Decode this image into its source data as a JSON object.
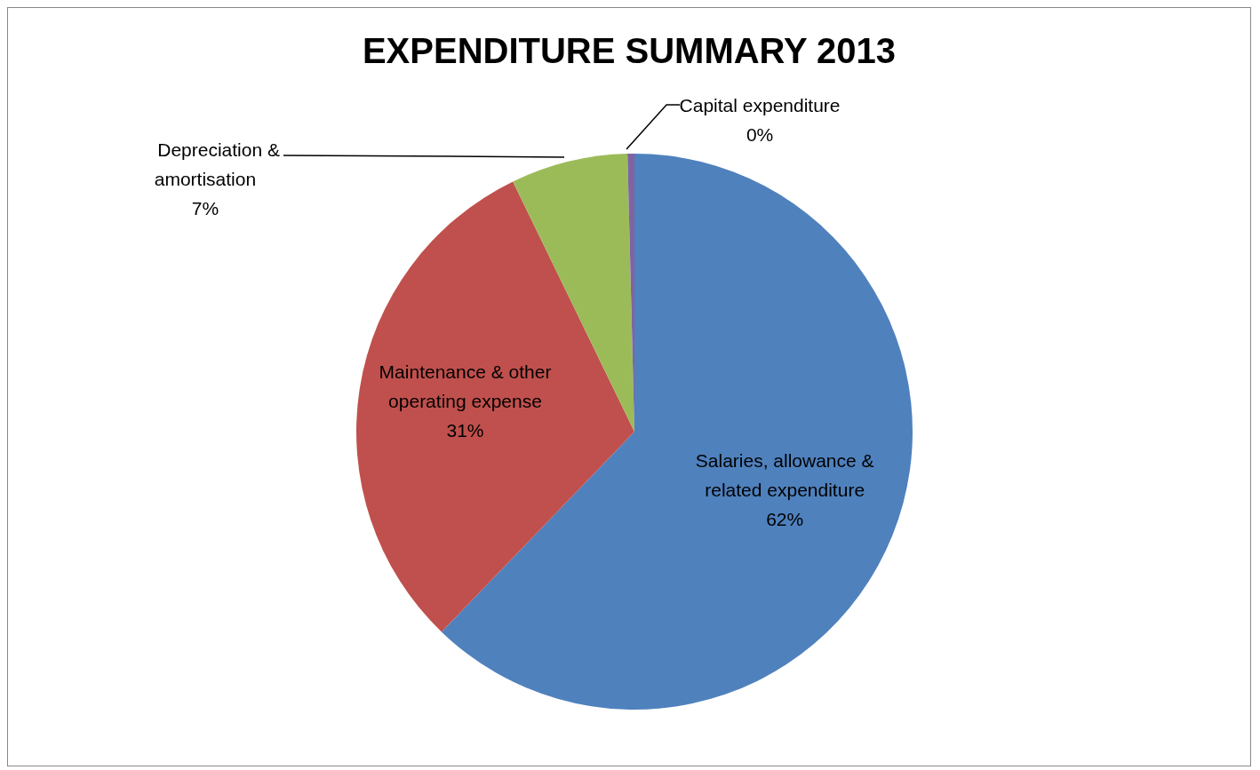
{
  "chart_data": {
    "type": "pie",
    "title": "EXPENDITURE SUMMARY 2013",
    "categories": [
      "Salaries, allowance & related expenditure",
      "Maintenance & other operating expense",
      "Depreciation & amortisation",
      "Capital expenditure"
    ],
    "values": [
      62.2,
      30.6,
      6.8,
      0.4
    ],
    "value_labels": [
      "62%",
      "31%",
      "7%",
      "0%"
    ],
    "colors": [
      "#4f81bd",
      "#c0504d",
      "#9bbb59",
      "#8064a2"
    ],
    "legend": false
  }
}
